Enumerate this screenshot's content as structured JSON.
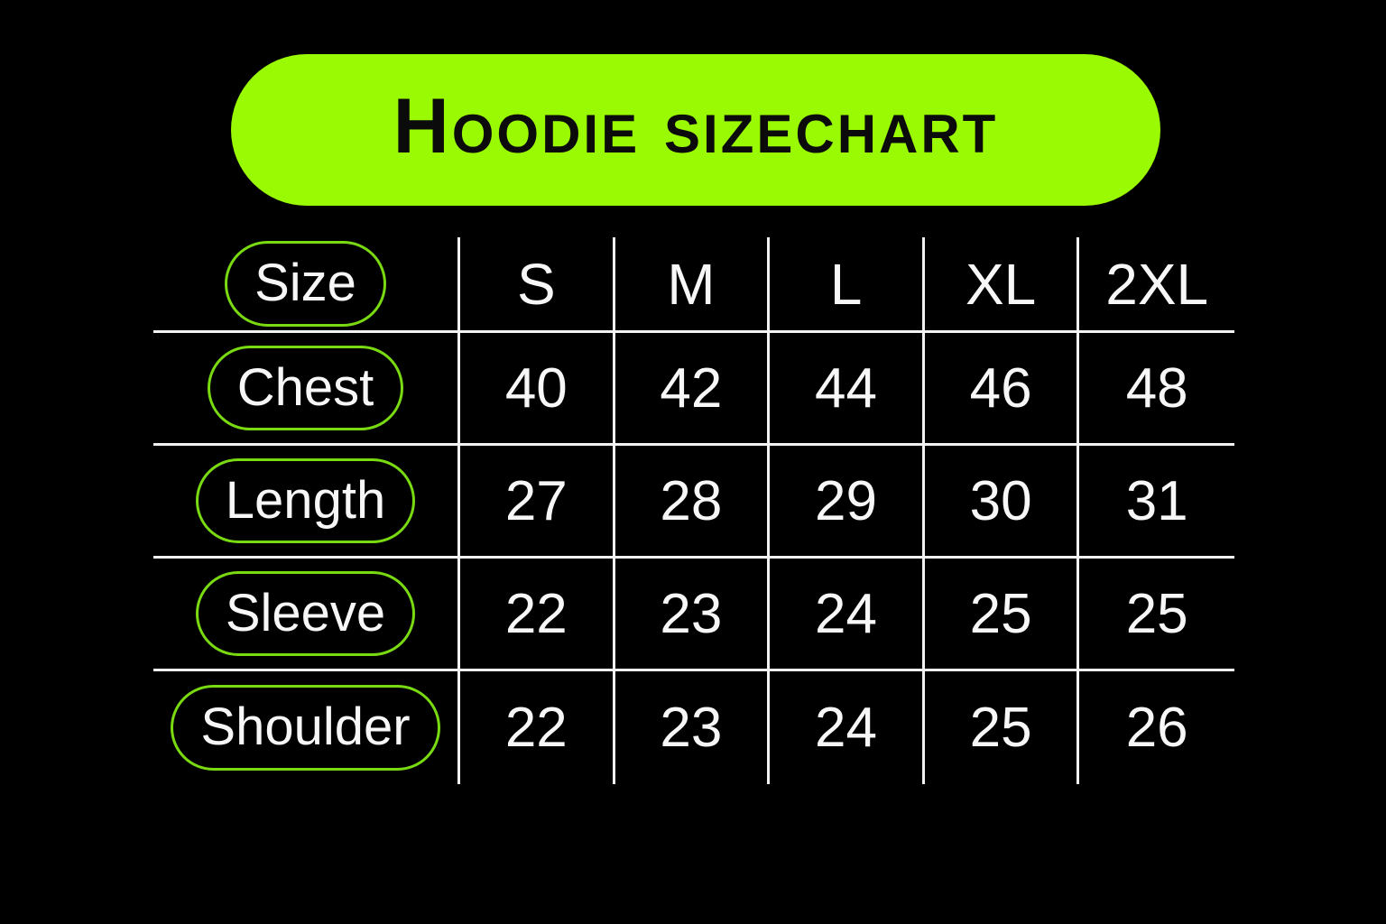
{
  "title": "Hoodie sizechart",
  "colors": {
    "background": "#000000",
    "banner_fill": "#9afa04",
    "banner_text": "#0b0b0b",
    "pill_outline_green": "#79da12",
    "table_text": "#f7f7f7",
    "grid_line": "#f2f2f2"
  },
  "chart_data": {
    "type": "table",
    "title": "Hoodie sizechart",
    "columns": [
      "Size",
      "S",
      "M",
      "L",
      "XL",
      "2XL"
    ],
    "rows": [
      {
        "label": "Chest",
        "values": [
          40,
          42,
          44,
          46,
          48
        ]
      },
      {
        "label": "Length",
        "values": [
          27,
          28,
          29,
          30,
          31
        ]
      },
      {
        "label": "Sleeve",
        "values": [
          22,
          23,
          24,
          25,
          25
        ]
      },
      {
        "label": "Shoulder",
        "values": [
          22,
          23,
          24,
          25,
          26
        ]
      }
    ],
    "layout_hints": {
      "grid": "internal lines only, no outer border",
      "row_label_style": "green outlined pill",
      "header_style": "green filled rounded banner"
    }
  }
}
